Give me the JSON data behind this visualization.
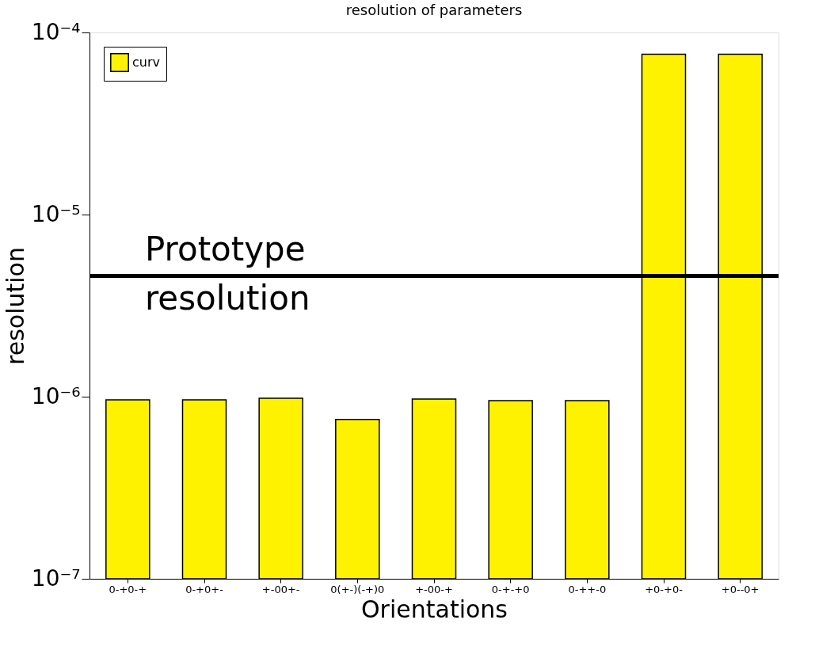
{
  "chart_data": {
    "type": "bar",
    "title": "resolution of parameters",
    "xlabel": "Orientations",
    "ylabel": "resolution",
    "categories": [
      "0-+0-+",
      "0-+0+-",
      "+-00+-",
      "0(+-)(-+)0",
      "+-00-+",
      "0-+-+0",
      "0-++-0",
      "+0-+0-",
      "+0--0+"
    ],
    "series": [
      {
        "name": "curv",
        "color": "#fff200",
        "values": [
          9.6e-07,
          9.6e-07,
          9.8e-07,
          7.5e-07,
          9.7e-07,
          9.5e-07,
          9.5e-07,
          7.6e-05,
          7.6e-05
        ]
      }
    ],
    "log": "y",
    "ylim": [
      1e-07,
      0.0001
    ],
    "yticks": [
      {
        "value": 1e-07,
        "label": "10⁻⁷"
      },
      {
        "value": 1e-06,
        "label": "10⁻⁶"
      },
      {
        "value": 1e-05,
        "label": "10⁻⁵"
      },
      {
        "value": 0.0001,
        "label": "10⁻⁴"
      }
    ],
    "ref_lines": [
      {
        "axis": "y",
        "value": 4.6e-06,
        "label": "Prototype\nresolution",
        "color": "#000000"
      }
    ],
    "legend": "top left",
    "grid": false
  }
}
